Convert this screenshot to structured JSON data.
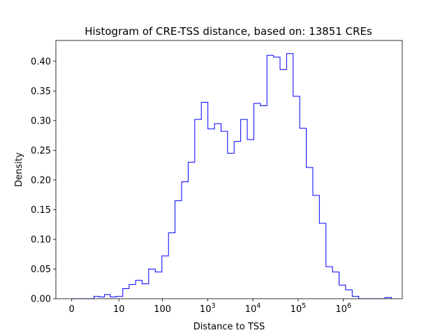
{
  "chart_data": {
    "type": "histogram",
    "title": "Histogram of CRE-TSS distance, based on: 13851 CREs",
    "xlabel": "Distance to TSS",
    "ylabel": "Density",
    "x_scale": "log(1+x)",
    "ylim": [
      0,
      0.435
    ],
    "x_ticks": [
      {
        "label": "0",
        "value": 0
      },
      {
        "label": "10",
        "value": 10
      },
      {
        "label": "100",
        "value": 100
      },
      {
        "label": "10^3",
        "value": 1000
      },
      {
        "label": "10^4",
        "value": 10000
      },
      {
        "label": "10^5",
        "value": 100000
      },
      {
        "label": "10^6",
        "value": 1000000
      }
    ],
    "y_ticks": [
      "0.00",
      "0.05",
      "0.10",
      "0.15",
      "0.20",
      "0.25",
      "0.30",
      "0.35",
      "0.40"
    ],
    "line_color": "#0000ff",
    "grid": false,
    "legend": "none",
    "bin_edges": [
      0,
      0.16,
      0.45,
      0.85,
      1.4,
      2.1,
      3.0,
      4.3,
      6.1,
      8.7,
      12.4,
      17.5,
      24.7,
      34.8,
      49,
      69,
      97,
      136,
      190,
      266,
      372,
      520,
      727,
      1015,
      1418,
      1980,
      2765,
      3860,
      5390,
      7525,
      10505,
      14660,
      20460,
      28560,
      39870,
      55650,
      77680,
      108420,
      151330,
      211230,
      294830,
      411520,
      574400,
      801730,
      1119000,
      1562000,
      2180000,
      3043000,
      4247000,
      5928000,
      8274000,
      11550000
    ],
    "density": [
      0.0,
      0.0,
      0.0,
      0.0,
      0.0,
      0.004,
      0.003,
      0.007,
      0.003,
      0.004,
      0.017,
      0.024,
      0.031,
      0.025,
      0.05,
      0.045,
      0.072,
      0.111,
      0.165,
      0.197,
      0.23,
      0.302,
      0.331,
      0.286,
      0.295,
      0.282,
      0.245,
      0.265,
      0.302,
      0.268,
      0.329,
      0.325,
      0.41,
      0.407,
      0.386,
      0.413,
      0.341,
      0.287,
      0.221,
      0.174,
      0.127,
      0.054,
      0.045,
      0.023,
      0.015,
      0.004,
      0.0,
      0.0,
      0.0,
      0.0,
      0.002
    ]
  }
}
